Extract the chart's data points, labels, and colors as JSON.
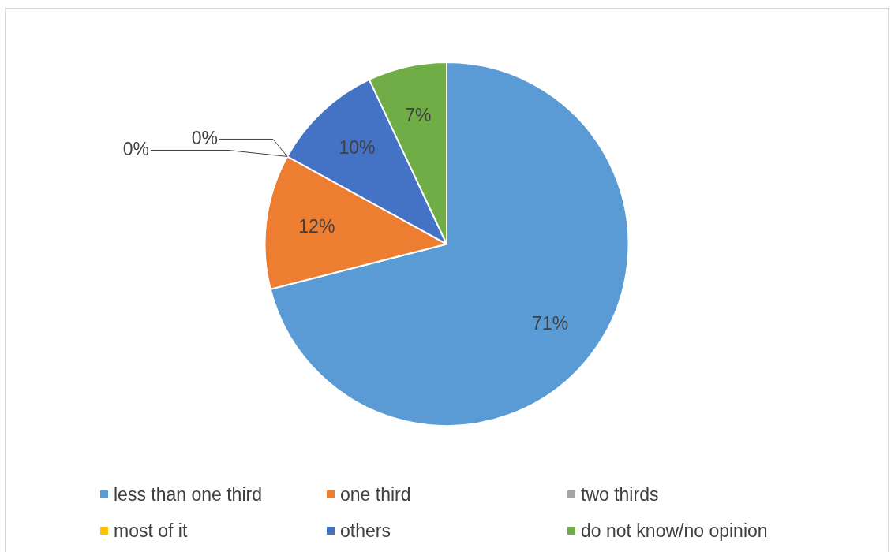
{
  "chart_data": {
    "type": "pie",
    "categories": [
      "less than one third",
      "one third",
      "two thirds",
      "most of it",
      "others",
      "do not know/no opinion"
    ],
    "values": [
      71,
      12,
      0,
      0,
      10,
      7
    ],
    "colors": [
      "#5b9bd5",
      "#ed7d31",
      "#a5a5a5",
      "#ffc000",
      "#4472c4",
      "#70ad47"
    ],
    "value_labels": [
      "71%",
      "12%",
      "0%",
      "0%",
      "10%",
      "7%"
    ],
    "legend": "bottom"
  }
}
